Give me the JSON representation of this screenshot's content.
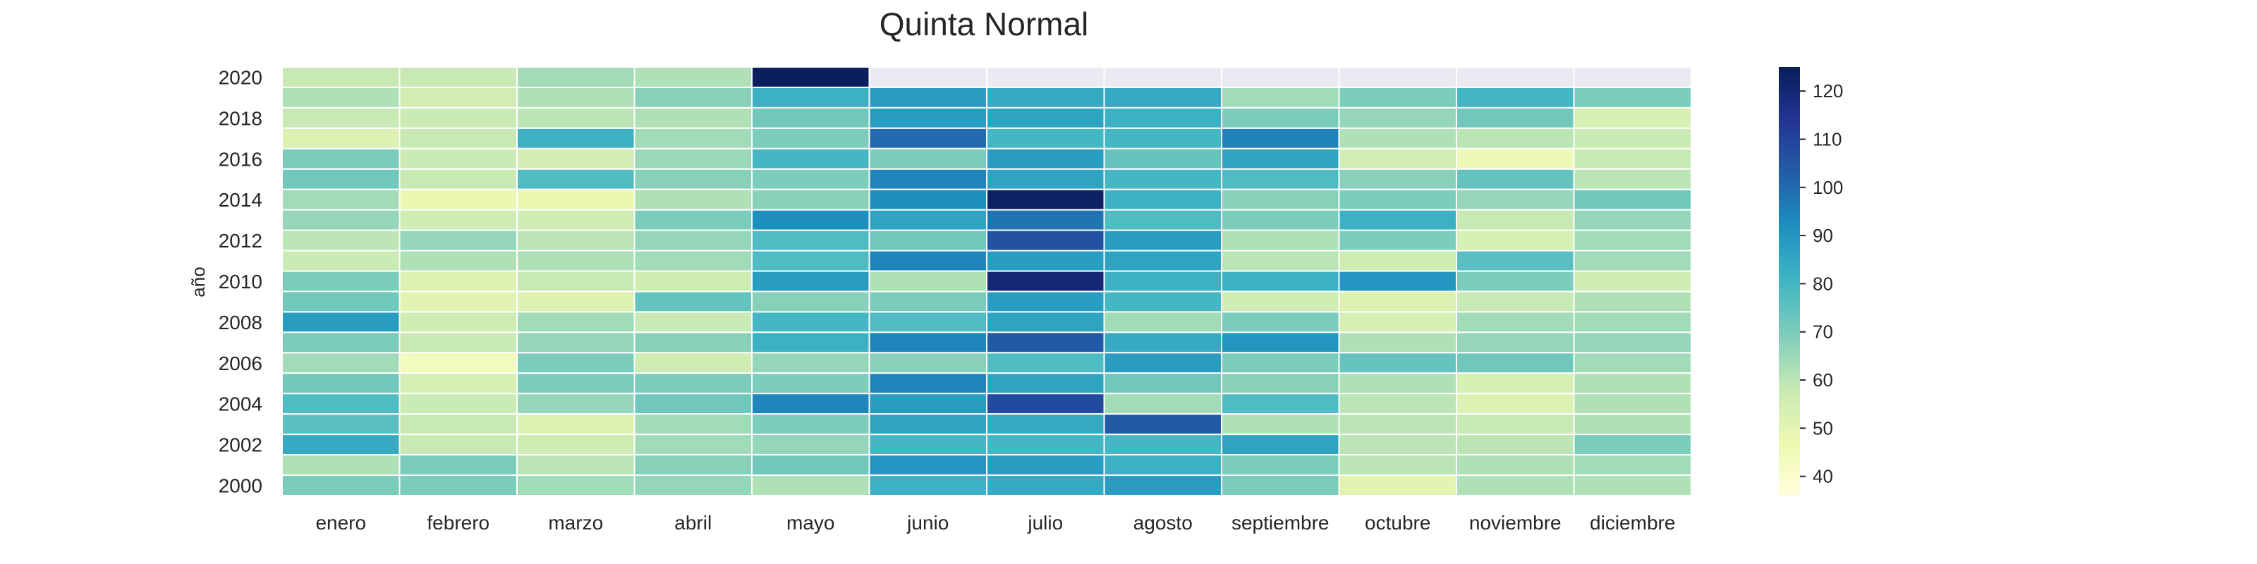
{
  "chart_data": {
    "type": "heatmap",
    "title": "Quinta Normal",
    "xlabel": "",
    "ylabel": "año",
    "months": [
      "enero",
      "febrero",
      "marzo",
      "abril",
      "mayo",
      "junio",
      "julio",
      "agosto",
      "septiembre",
      "octubre",
      "noviembre",
      "diciembre"
    ],
    "years": [
      2020,
      2019,
      2018,
      2017,
      2016,
      2015,
      2014,
      2013,
      2012,
      2011,
      2010,
      2009,
      2008,
      2007,
      2006,
      2005,
      2004,
      2003,
      2002,
      2001,
      2000
    ],
    "year_tick_labels": [
      "2020",
      "2018",
      "2016",
      "2014",
      "2012",
      "2010",
      "2008",
      "2006",
      "2004",
      "2002",
      "2000"
    ],
    "values": [
      [
        58,
        58,
        64,
        62,
        124,
        null,
        null,
        null,
        null,
        null,
        null,
        null
      ],
      [
        62,
        55,
        62,
        68,
        82,
        88,
        84,
        84,
        64,
        70,
        80,
        70
      ],
      [
        58,
        57,
        60,
        62,
        72,
        88,
        86,
        82,
        70,
        66,
        72,
        54
      ],
      [
        52,
        58,
        82,
        64,
        70,
        100,
        80,
        80,
        95,
        62,
        60,
        57
      ],
      [
        70,
        57,
        55,
        65,
        80,
        70,
        88,
        74,
        86,
        55,
        46,
        58
      ],
      [
        72,
        58,
        78,
        68,
        70,
        94,
        86,
        80,
        78,
        68,
        74,
        60
      ],
      [
        64,
        48,
        48,
        62,
        68,
        92,
        123,
        82,
        68,
        70,
        66,
        72
      ],
      [
        66,
        56,
        56,
        70,
        92,
        86,
        98,
        78,
        70,
        82,
        58,
        66
      ],
      [
        60,
        66,
        60,
        66,
        78,
        72,
        106,
        88,
        62,
        70,
        54,
        64
      ],
      [
        57,
        62,
        62,
        64,
        78,
        94,
        88,
        86,
        60,
        56,
        76,
        64
      ],
      [
        70,
        52,
        58,
        56,
        88,
        62,
        120,
        82,
        82,
        90,
        70,
        56
      ],
      [
        72,
        50,
        52,
        74,
        68,
        70,
        88,
        80,
        56,
        52,
        58,
        62
      ],
      [
        88,
        56,
        64,
        58,
        80,
        78,
        86,
        64,
        70,
        54,
        64,
        64
      ],
      [
        70,
        58,
        66,
        68,
        82,
        94,
        104,
        84,
        90,
        62,
        66,
        66
      ],
      [
        64,
        44,
        70,
        56,
        66,
        68,
        78,
        88,
        70,
        74,
        72,
        64
      ],
      [
        72,
        54,
        70,
        70,
        70,
        94,
        86,
        72,
        68,
        62,
        54,
        62
      ],
      [
        78,
        57,
        66,
        72,
        94,
        88,
        108,
        64,
        78,
        60,
        52,
        62
      ],
      [
        76,
        58,
        52,
        64,
        70,
        86,
        84,
        104,
        62,
        60,
        58,
        62
      ],
      [
        84,
        58,
        56,
        64,
        66,
        80,
        80,
        80,
        86,
        60,
        60,
        70
      ],
      [
        62,
        70,
        60,
        68,
        72,
        90,
        88,
        82,
        70,
        60,
        62,
        64
      ],
      [
        70,
        70,
        64,
        66,
        62,
        82,
        84,
        88,
        70,
        50,
        62,
        62
      ]
    ],
    "vmin": 36,
    "vmax": 125,
    "colormap": "YlGnBu",
    "nan_color": "#eaeaf2",
    "colorbar_ticks": [
      40,
      50,
      60,
      70,
      80,
      90,
      100,
      110,
      120
    ],
    "grid": false
  }
}
